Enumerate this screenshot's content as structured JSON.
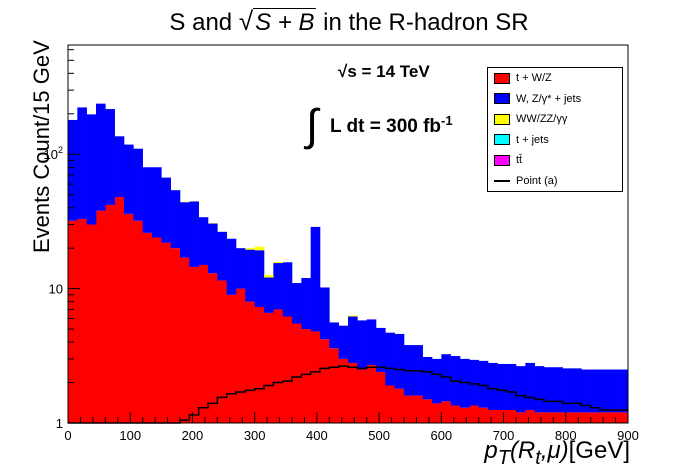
{
  "title": "S and √S + B  in the R-hadron SR",
  "annotation_energy": "√s = 14 TeV",
  "annotation_lumi": "L dt = 300 fb",
  "annotation_lumi_exp": "-1",
  "legend": [
    {
      "label": "t + W/Z",
      "color": "#ff0000"
    },
    {
      "label": "W, Z/γ* + jets",
      "color": "#0000ff"
    },
    {
      "label": "WW/ZZ/γγ",
      "color": "#ffff00"
    },
    {
      "label": "t + jets",
      "color": "#00ffff"
    },
    {
      "label": "tt̄",
      "color": "#ff00ff"
    },
    {
      "label": "Point (a)",
      "color": "#000000"
    }
  ],
  "chart_data": {
    "type": "bar",
    "title": "S and √S + B  in the R-hadron SR",
    "xlabel": "p_T(R_t,μ)[GeV]",
    "ylabel": "Events Count/15 GeV",
    "xlim": [
      0,
      900
    ],
    "ylim": [
      1,
      650
    ],
    "yscale": "log",
    "bin_width": 15,
    "x_ticks": [
      0,
      100,
      200,
      300,
      400,
      500,
      600,
      700,
      800,
      900
    ],
    "y_ticks": [
      {
        "value": 1,
        "label": "1"
      },
      {
        "value": 10,
        "label": "10"
      },
      {
        "value": 100,
        "label": "10²"
      }
    ],
    "series": [
      {
        "name": "t + W/Z",
        "color": "#ff0000",
        "type": "stacked",
        "values": [
          32,
          33,
          30,
          38,
          42,
          48,
          36,
          32,
          26,
          24,
          22,
          20,
          17,
          14.5,
          15,
          13,
          11.5,
          9,
          10,
          8,
          7.3,
          6.6,
          7,
          6.2,
          5.5,
          5,
          4.8,
          4.2,
          3.6,
          3,
          2.8,
          2.5,
          2.7,
          2.4,
          1.9,
          1.8,
          1.6,
          1.6,
          1.5,
          1.4,
          1.45,
          1.35,
          1.3,
          1.35,
          1.3,
          1.25,
          1.25,
          1.25,
          1.2,
          1.25,
          1.2,
          1.2,
          1.2,
          1.2,
          1.2,
          1.2,
          1.2,
          1.2,
          1.2,
          1.2
        ]
      },
      {
        "name": "W, Z/γ* + jets",
        "color": "#0000ff",
        "type": "stacked",
        "values": [
          148,
          190,
          168,
          200,
          175,
          88,
          82,
          78,
          54,
          56,
          45,
          34,
          27,
          30,
          19,
          17.5,
          15,
          14.5,
          10,
          11.5,
          12,
          5.5,
          8.5,
          9.5,
          5.5,
          7,
          24,
          6,
          2,
          2.3,
          3.4,
          3.3,
          3.2,
          2.7,
          2.8,
          2.8,
          2.2,
          2.2,
          1.6,
          1.6,
          1.8,
          1.8,
          1.7,
          1.6,
          1.6,
          1.55,
          1.5,
          1.5,
          1.45,
          1.55,
          1.45,
          1.4,
          1.4,
          1.35,
          1.35,
          1.3,
          1.3,
          1.3,
          1.3,
          1.3
        ]
      },
      {
        "name": "WW/ZZ/γγ",
        "color": "#ffff00",
        "type": "stacked",
        "values": [
          0,
          0,
          0,
          0,
          0,
          0,
          0,
          0,
          0,
          0,
          0,
          0,
          0.3,
          0.2,
          0,
          0.2,
          0.1,
          0,
          0,
          0.5,
          1.2,
          0.5,
          0.3,
          0,
          0,
          0,
          0,
          0,
          0,
          0,
          0.1,
          0,
          0,
          0,
          0,
          0,
          0,
          0,
          0,
          0,
          0,
          0,
          0,
          0,
          0,
          0,
          0,
          0,
          0,
          0,
          0,
          0,
          0,
          0,
          0,
          0,
          0,
          0,
          0,
          0
        ]
      },
      {
        "name": "tt̄",
        "color": "#ff00ff",
        "type": "stacked",
        "values": [
          0,
          0,
          0,
          0,
          0,
          0,
          0,
          0,
          0,
          0,
          0,
          0,
          0,
          0,
          0,
          0,
          0,
          0,
          0,
          0,
          0,
          0,
          0,
          0,
          0,
          0,
          0,
          0,
          0,
          0,
          0,
          0,
          0,
          0,
          0,
          0,
          0,
          0,
          0,
          0,
          0,
          0,
          0,
          0,
          0,
          0,
          0,
          0,
          0,
          0,
          0,
          0,
          0,
          0,
          0,
          0,
          0,
          0,
          0,
          0
        ]
      },
      {
        "name": "Point (a)",
        "color": "#000000",
        "type": "step",
        "values": [
          0,
          0,
          0,
          0,
          0,
          0,
          0,
          0,
          0,
          0,
          0,
          0,
          1.05,
          1.15,
          1.3,
          1.4,
          1.55,
          1.65,
          1.7,
          1.75,
          1.8,
          1.9,
          2,
          2.05,
          2.2,
          2.3,
          2.4,
          2.55,
          2.6,
          2.65,
          2.6,
          2.55,
          2.6,
          2.6,
          2.55,
          2.5,
          2.45,
          2.45,
          2.4,
          2.3,
          2.2,
          2.05,
          2,
          1.95,
          1.9,
          1.8,
          1.75,
          1.7,
          1.6,
          1.55,
          1.5,
          1.45,
          1.45,
          1.4,
          1.4,
          1.35,
          1.3,
          1.25,
          1.25,
          1.25
        ]
      }
    ]
  }
}
